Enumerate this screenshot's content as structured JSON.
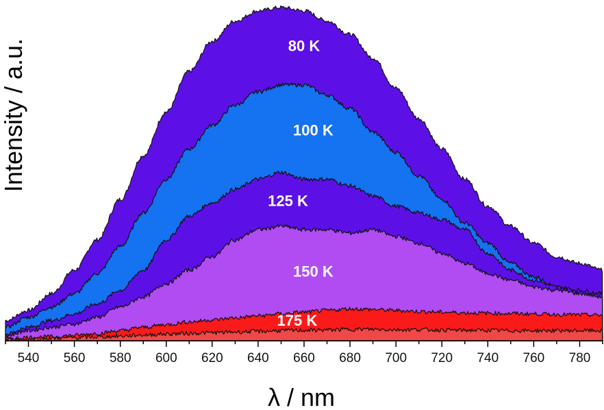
{
  "chart_data": {
    "type": "area",
    "title": "",
    "xlabel": "λ / nm",
    "ylabel": "Intensity / a.u.",
    "xlim": [
      530,
      790
    ],
    "ylim": [
      0,
      1.0
    ],
    "x_ticks": [
      540,
      560,
      580,
      600,
      620,
      640,
      660,
      680,
      700,
      720,
      740,
      760,
      780
    ],
    "grid": false,
    "legend": "inline labels",
    "x": [
      530,
      540,
      550,
      560,
      570,
      580,
      590,
      600,
      610,
      620,
      630,
      640,
      650,
      660,
      670,
      680,
      690,
      700,
      710,
      720,
      730,
      740,
      750,
      760,
      770,
      780,
      790
    ],
    "series": [
      {
        "name": "80 K",
        "color": "#5d10e6",
        "values": [
          0.06,
          0.09,
          0.14,
          0.21,
          0.3,
          0.42,
          0.55,
          0.68,
          0.8,
          0.89,
          0.95,
          0.98,
          0.99,
          0.98,
          0.95,
          0.91,
          0.84,
          0.75,
          0.66,
          0.57,
          0.48,
          0.4,
          0.34,
          0.29,
          0.25,
          0.23,
          0.21
        ]
      },
      {
        "name": "100 K",
        "color": "#1572f0",
        "values": [
          0.04,
          0.07,
          0.1,
          0.14,
          0.2,
          0.28,
          0.38,
          0.48,
          0.57,
          0.64,
          0.7,
          0.74,
          0.76,
          0.76,
          0.73,
          0.69,
          0.62,
          0.56,
          0.49,
          0.42,
          0.35,
          0.29,
          0.23,
          0.19,
          0.16,
          0.14,
          0.13
        ]
      },
      {
        "name": "125 K",
        "color": "#5d10e6",
        "values": [
          0.02,
          0.04,
          0.06,
          0.08,
          0.11,
          0.15,
          0.21,
          0.3,
          0.37,
          0.41,
          0.45,
          0.48,
          0.5,
          0.48,
          0.48,
          0.46,
          0.43,
          0.4,
          0.38,
          0.36,
          0.33,
          0.26,
          0.21,
          0.18,
          0.16,
          0.15,
          0.14
        ]
      },
      {
        "name": "150 K",
        "color": "#b04cf2",
        "values": [
          0.015,
          0.03,
          0.04,
          0.05,
          0.07,
          0.1,
          0.13,
          0.17,
          0.21,
          0.25,
          0.3,
          0.33,
          0.34,
          0.33,
          0.33,
          0.32,
          0.33,
          0.31,
          0.29,
          0.26,
          0.23,
          0.2,
          0.18,
          0.16,
          0.15,
          0.14,
          0.13
        ]
      },
      {
        "name": "175 K",
        "color": "#fb1a1a",
        "values": [
          0.005,
          0.01,
          0.012,
          0.016,
          0.022,
          0.03,
          0.04,
          0.048,
          0.056,
          0.062,
          0.068,
          0.074,
          0.08,
          0.085,
          0.09,
          0.095,
          0.093,
          0.09,
          0.087,
          0.085,
          0.083,
          0.082,
          0.081,
          0.08,
          0.078,
          0.077,
          0.076
        ]
      },
      {
        "name": "",
        "color": "#f04848",
        "values": [
          0.003,
          0.005,
          0.007,
          0.009,
          0.011,
          0.014,
          0.017,
          0.02,
          0.022,
          0.024,
          0.026,
          0.028,
          0.03,
          0.031,
          0.032,
          0.034,
          0.034,
          0.033,
          0.033,
          0.032,
          0.031,
          0.031,
          0.03,
          0.03,
          0.03,
          0.03,
          0.03
        ]
      }
    ]
  }
}
